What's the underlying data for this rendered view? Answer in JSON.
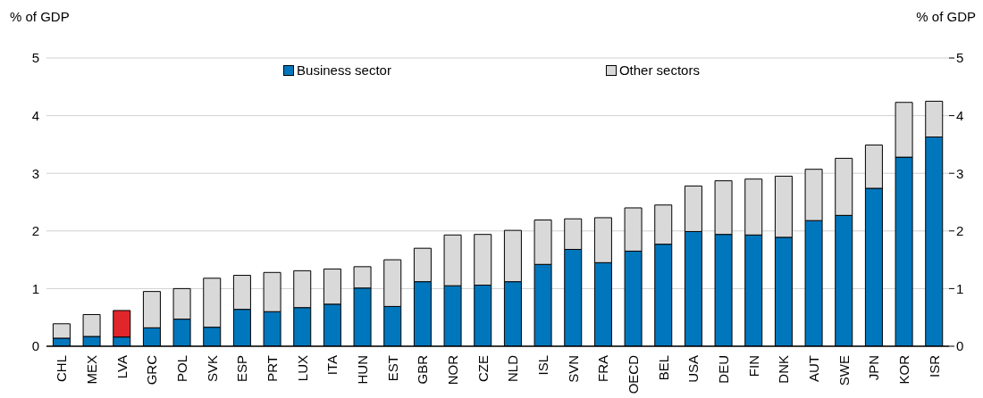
{
  "chart_data": {
    "type": "bar",
    "stacked": true,
    "categories": [
      "CHL",
      "MEX",
      "LVA",
      "GRC",
      "POL",
      "SVK",
      "ESP",
      "PRT",
      "LUX",
      "ITA",
      "HUN",
      "EST",
      "GBR",
      "NOR",
      "CZE",
      "NLD",
      "ISL",
      "SVN",
      "FRA",
      "OECD",
      "BEL",
      "USA",
      "DEU",
      "FIN",
      "DNK",
      "AUT",
      "SWE",
      "JPN",
      "KOR",
      "ISR"
    ],
    "series": [
      {
        "name": "Business sector",
        "color": "#0077bd",
        "values": [
          0.14,
          0.17,
          0.16,
          0.32,
          0.47,
          0.33,
          0.64,
          0.6,
          0.67,
          0.73,
          1.01,
          0.69,
          1.12,
          1.05,
          1.06,
          1.12,
          1.42,
          1.68,
          1.45,
          1.65,
          1.77,
          1.99,
          1.94,
          1.93,
          1.89,
          2.18,
          2.27,
          2.74,
          3.28,
          3.63
        ]
      },
      {
        "name": "Other sectors",
        "color": "#d9d9d9",
        "colors": [
          "#d9d9d9",
          "#d9d9d9",
          "#e0262b",
          "#d9d9d9",
          "#d9d9d9",
          "#d9d9d9",
          "#d9d9d9",
          "#d9d9d9",
          "#d9d9d9",
          "#d9d9d9",
          "#d9d9d9",
          "#d9d9d9",
          "#d9d9d9",
          "#d9d9d9",
          "#d9d9d9",
          "#d9d9d9",
          "#d9d9d9",
          "#d9d9d9",
          "#d9d9d9",
          "#d9d9d9",
          "#d9d9d9",
          "#d9d9d9",
          "#d9d9d9",
          "#d9d9d9",
          "#d9d9d9",
          "#d9d9d9",
          "#d9d9d9",
          "#d9d9d9",
          "#d9d9d9",
          "#d9d9d9"
        ],
        "values": [
          0.25,
          0.38,
          0.46,
          0.63,
          0.53,
          0.85,
          0.59,
          0.68,
          0.64,
          0.61,
          0.37,
          0.81,
          0.58,
          0.88,
          0.88,
          0.89,
          0.77,
          0.53,
          0.78,
          0.75,
          0.68,
          0.79,
          0.93,
          0.97,
          1.06,
          0.89,
          0.99,
          0.75,
          0.95,
          0.62
        ]
      }
    ],
    "ylabel": "% of GDP",
    "y2label": "% of GDP",
    "ylim": [
      0,
      5
    ],
    "yticks": [
      0,
      1,
      2,
      3,
      4,
      5
    ],
    "y2lim": [
      0,
      5
    ],
    "y2ticks": [
      0,
      1,
      2,
      3,
      4,
      5
    ],
    "grid": "y",
    "legend": "top"
  }
}
